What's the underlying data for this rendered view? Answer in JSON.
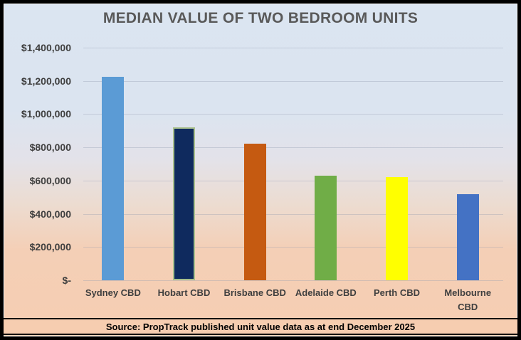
{
  "chart_data": {
    "type": "bar",
    "title": "MEDIAN VALUE OF TWO BEDROOM UNITS",
    "categories": [
      "Sydney CBD",
      "Hobart CBD",
      "Brisbane CBD",
      "Adelaide CBD",
      "Perth CBD",
      "Melbourne CBD"
    ],
    "categories_display": [
      [
        "Sydney CBD"
      ],
      [
        "Hobart CBD"
      ],
      [
        "Brisbane CBD"
      ],
      [
        "Adelaide CBD"
      ],
      [
        "Perth CBD"
      ],
      [
        "Melbourne",
        "CBD"
      ]
    ],
    "values": [
      1225000,
      920000,
      820000,
      630000,
      620000,
      520000
    ],
    "bar_colors": [
      "#5b9bd5",
      "#0f2a5e",
      "#c55a11",
      "#70ad47",
      "#ffff00",
      "#4472c4"
    ],
    "bar_borders": [
      "none",
      "#a9c08c",
      "none",
      "none",
      "none",
      "none"
    ],
    "xlabel": "",
    "ylabel": "",
    "ylim": [
      0,
      1400000
    ],
    "y_ticks": [
      {
        "value": 1400000,
        "label": "$1,400,000"
      },
      {
        "value": 1200000,
        "label": "$1,200,000"
      },
      {
        "value": 1000000,
        "label": "$1,000,000"
      },
      {
        "value": 800000,
        "label": "$800,000"
      },
      {
        "value": 600000,
        "label": "$600,000"
      },
      {
        "value": 400000,
        "label": "$400,000"
      },
      {
        "value": 200000,
        "label": "$200,000"
      },
      {
        "value": 0,
        "label": "$-"
      }
    ],
    "grid": true,
    "legend": false,
    "annotation": "Source: PropTrack published unit value data as at end December 2025"
  },
  "source": {
    "text": "Source: PropTrack published unit value data as at end December 2025"
  },
  "colors": {
    "frame_border": "#000000",
    "background_top": "#dbe5f1",
    "background_bottom": "#f6ceb2",
    "title_text": "#595959",
    "axis_text": "#3f3f3f",
    "source_band_background": "#f6cdb0",
    "source_text": "#000000"
  }
}
